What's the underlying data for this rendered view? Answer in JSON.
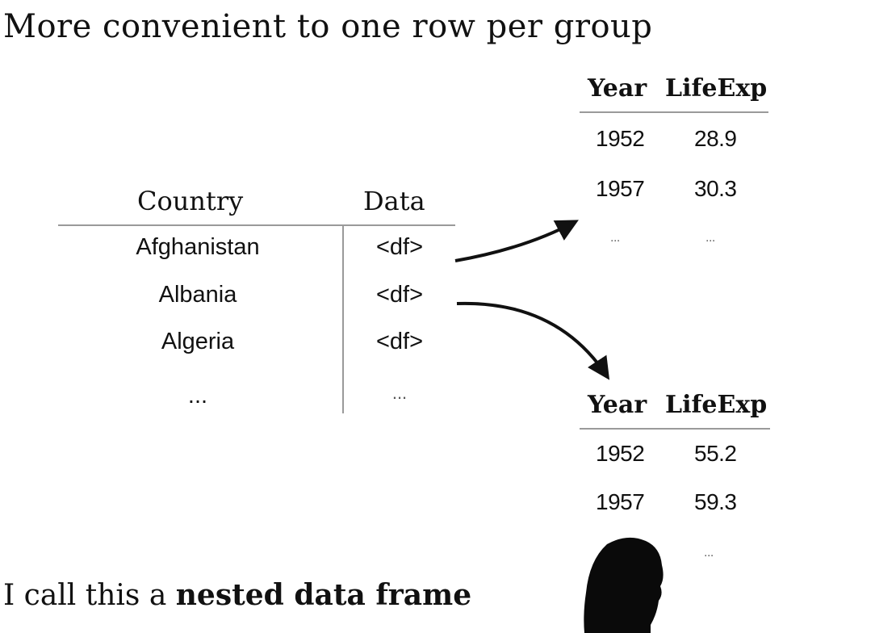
{
  "title": "More convenient to one row per group",
  "caption": {
    "prefix": "I call this a ",
    "bold": "nested data frame"
  },
  "main_table": {
    "headers": [
      "Country",
      "Data"
    ],
    "rows": [
      {
        "country": "Afghanistan",
        "data": "<df>"
      },
      {
        "country": "Albania",
        "data": "<df>"
      },
      {
        "country": "Algeria",
        "data": "<df>"
      },
      {
        "country": "...",
        "data": "..."
      }
    ]
  },
  "nested_tables": [
    {
      "headers": [
        "Year",
        "LifeExp"
      ],
      "rows": [
        {
          "year": "1952",
          "lifeexp": "28.9"
        },
        {
          "year": "1957",
          "lifeexp": "30.3"
        },
        {
          "year": "...",
          "lifeexp": "..."
        }
      ]
    },
    {
      "headers": [
        "Year",
        "LifeExp"
      ],
      "rows": [
        {
          "year": "1952",
          "lifeexp": "55.2"
        },
        {
          "year": "1957",
          "lifeexp": "59.3"
        },
        {
          "year": "",
          "lifeexp": "..."
        }
      ]
    }
  ]
}
